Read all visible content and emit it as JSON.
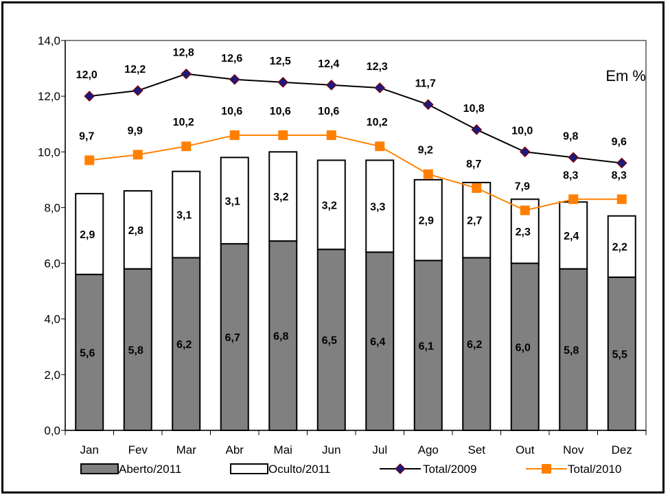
{
  "chart_data": {
    "type": "bar",
    "note": "Em %",
    "categories": [
      "Jan",
      "Fev",
      "Mar",
      "Abr",
      "Mai",
      "Jun",
      "Jul",
      "Ago",
      "Set",
      "Out",
      "Nov",
      "Dez"
    ],
    "ylim": [
      0,
      14
    ],
    "yticks": [
      "0,0",
      "2,0",
      "4,0",
      "6,0",
      "8,0",
      "10,0",
      "12,0",
      "14,0"
    ],
    "grid": false,
    "legend_position": "bottom",
    "stacked": true,
    "bar_series": [
      {
        "name": "Aberto/2011",
        "values": [
          5.6,
          5.8,
          6.2,
          6.7,
          6.8,
          6.5,
          6.4,
          6.1,
          6.2,
          6.0,
          5.8,
          5.5
        ],
        "labels": [
          "5,6",
          "5,8",
          "6,2",
          "6,7",
          "6,8",
          "6,5",
          "6,4",
          "6,1",
          "6,2",
          "6,0",
          "5,8",
          "5,5"
        ],
        "color": "#808080"
      },
      {
        "name": "Oculto/2011",
        "values": [
          2.9,
          2.8,
          3.1,
          3.1,
          3.2,
          3.2,
          3.3,
          2.9,
          2.7,
          2.3,
          2.4,
          2.2
        ],
        "labels": [
          "2,9",
          "2,8",
          "3,1",
          "3,1",
          "3,2",
          "3,2",
          "3,3",
          "2,9",
          "2,7",
          "2,3",
          "2,4",
          "2,2"
        ],
        "color": "#ffffff"
      }
    ],
    "line_series": [
      {
        "name": "Total/2009",
        "values": [
          12.0,
          12.2,
          12.8,
          12.6,
          12.5,
          12.4,
          12.3,
          11.7,
          10.8,
          10.0,
          9.8,
          9.6
        ],
        "labels": [
          "12,0",
          "12,2",
          "12,8",
          "12,6",
          "12,5",
          "12,4",
          "12,3",
          "11,7",
          "10,8",
          "10,0",
          "9,8",
          "9,6"
        ],
        "color": "#000000",
        "marker_color": "#1a1a80",
        "marker": "diamond"
      },
      {
        "name": "Total/2010",
        "values": [
          9.7,
          9.9,
          10.2,
          10.6,
          10.6,
          10.6,
          10.2,
          9.2,
          8.7,
          7.9,
          8.3,
          8.3
        ],
        "labels": [
          "9,7",
          "9,9",
          "10,2",
          "10,6",
          "10,6",
          "10,6",
          "10,2",
          "9,2",
          "8,7",
          "7,9",
          "8,3",
          "8,3"
        ],
        "color": "#ff8000",
        "marker": "square"
      }
    ]
  }
}
